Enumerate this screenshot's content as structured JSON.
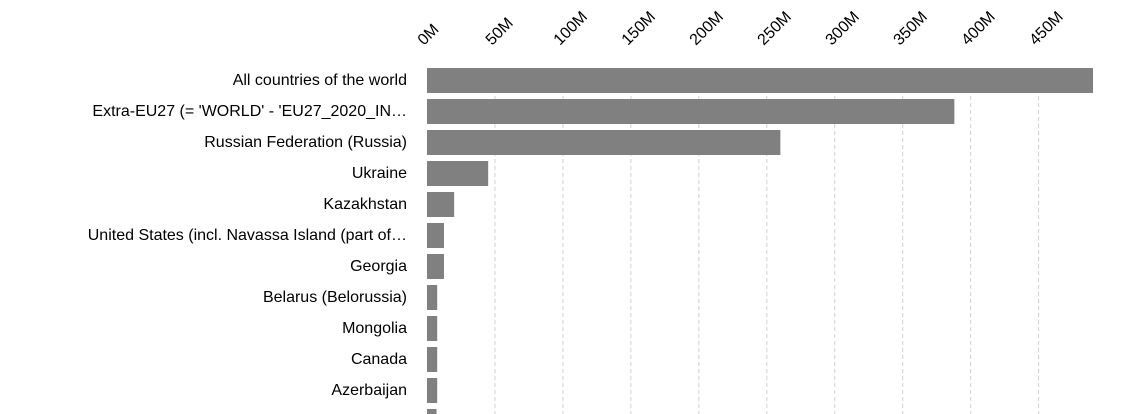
{
  "chart_data": {
    "type": "bar",
    "orientation": "horizontal",
    "categories": [
      "All countries of the world",
      "Extra-EU27 (= 'WORLD' - 'EU27_2020_IN…",
      "Russian Federation (Russia)",
      "Ukraine",
      "Kazakhstan",
      "United States (incl. Navassa Island (part of…",
      "Georgia",
      "Belarus (Belorussia)",
      "Mongolia",
      "Canada",
      "Azerbaijan",
      ""
    ],
    "values": [
      490000000,
      388000000,
      260000000,
      45000000,
      20000000,
      12500000,
      12500000,
      7500000,
      7500000,
      7500000,
      7500000,
      7000000
    ],
    "xticks": [
      0,
      50000000,
      100000000,
      150000000,
      200000000,
      250000000,
      300000000,
      350000000,
      400000000,
      450000000
    ],
    "xtick_labels": [
      "0M",
      "50M",
      "100M",
      "150M",
      "200M",
      "250M",
      "300M",
      "350M",
      "400M",
      "450M"
    ],
    "xlim": [
      0,
      490000000
    ],
    "bar_color": "#808080",
    "grid": "vertical dashed",
    "axis_position": "top",
    "title": "",
    "xlabel": "",
    "ylabel": ""
  }
}
